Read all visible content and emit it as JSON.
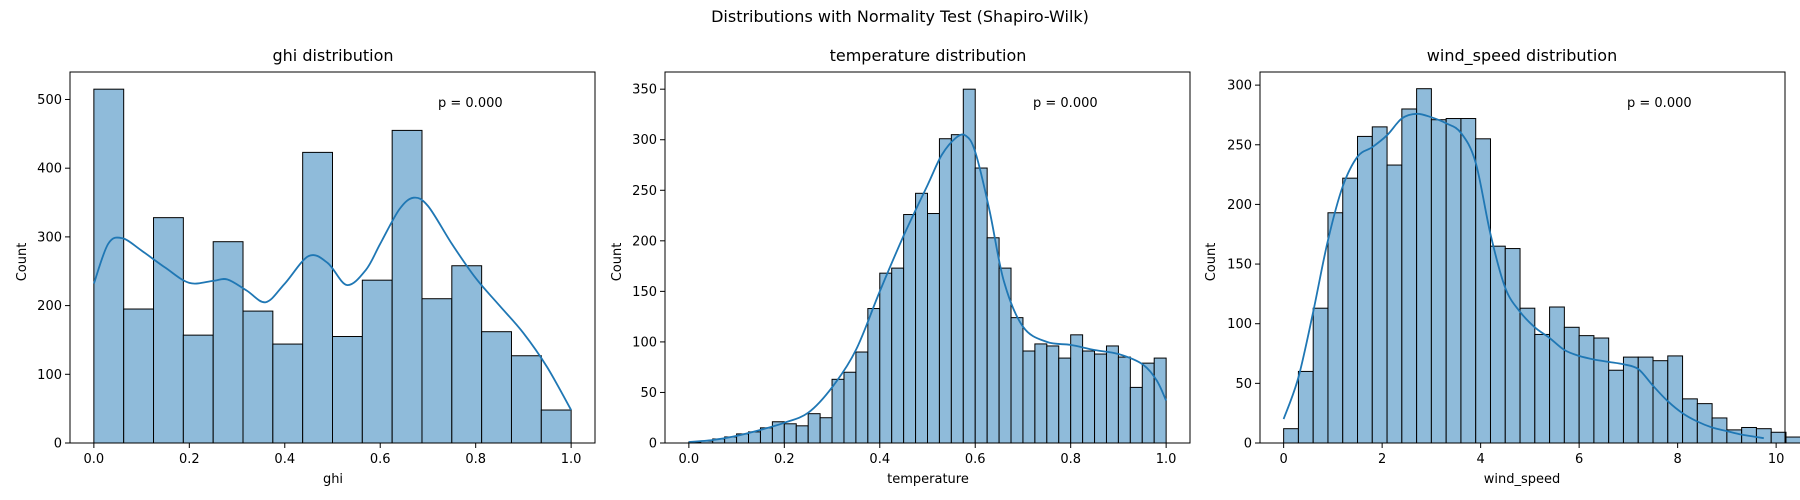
{
  "figure": {
    "suptitle": "Distributions with Normality Test (Shapiro-Wilk)"
  },
  "colors": {
    "bar_fill": "#8fbbda",
    "bar_edge": "#000000",
    "kde_line": "#1f77b4"
  },
  "chart_data": [
    {
      "type": "bar",
      "subtype": "histogram",
      "title": "ghi distribution",
      "xlabel": "ghi",
      "ylabel": "Count",
      "annotation": "p = 0.000",
      "xlim": [
        -0.05,
        1.05
      ],
      "ylim": [
        0,
        540
      ],
      "xticks": [
        0.0,
        0.2,
        0.4,
        0.6,
        0.8,
        1.0
      ],
      "xtick_labels": [
        "0.0",
        "0.2",
        "0.4",
        "0.6",
        "0.8",
        "1.0"
      ],
      "yticks": [
        0,
        100,
        200,
        300,
        400,
        500
      ],
      "ytick_labels": [
        "0",
        "100",
        "200",
        "300",
        "400",
        "500"
      ],
      "bin_start": 0.0,
      "bin_width": 0.0625,
      "values": [
        515,
        195,
        328,
        157,
        293,
        192,
        144,
        423,
        155,
        237,
        455,
        210,
        258,
        162,
        127,
        48
      ],
      "kde": {
        "x": [
          0.0,
          0.03,
          0.06,
          0.1,
          0.15,
          0.2,
          0.25,
          0.28,
          0.32,
          0.36,
          0.4,
          0.45,
          0.49,
          0.53,
          0.57,
          0.6,
          0.64,
          0.67,
          0.7,
          0.75,
          0.8,
          0.85,
          0.9,
          0.95,
          1.0
        ],
        "y": [
          232,
          290,
          298,
          280,
          255,
          233,
          236,
          238,
          222,
          205,
          232,
          272,
          262,
          230,
          252,
          290,
          340,
          357,
          345,
          290,
          240,
          200,
          160,
          110,
          48
        ]
      }
    },
    {
      "type": "bar",
      "subtype": "histogram",
      "title": "temperature distribution",
      "xlabel": "temperature",
      "ylabel": "Count",
      "annotation": "p = 0.000",
      "xlim": [
        -0.05,
        1.05
      ],
      "ylim": [
        0,
        367
      ],
      "xticks": [
        0.0,
        0.2,
        0.4,
        0.6,
        0.8,
        1.0
      ],
      "xtick_labels": [
        "0.0",
        "0.2",
        "0.4",
        "0.6",
        "0.8",
        "1.0"
      ],
      "yticks": [
        0,
        50,
        100,
        150,
        200,
        250,
        300,
        350
      ],
      "ytick_labels": [
        "0",
        "50",
        "100",
        "150",
        "200",
        "250",
        "300",
        "350"
      ],
      "bin_start": 0.0,
      "bin_width": 0.025,
      "values": [
        1,
        2,
        4,
        6,
        9,
        11,
        15,
        21,
        19,
        17,
        29,
        25,
        63,
        70,
        90,
        133,
        168,
        173,
        226,
        247,
        227,
        301,
        305,
        350,
        272,
        203,
        173,
        124,
        91,
        98,
        96,
        84,
        107,
        91,
        88,
        96,
        85,
        55,
        79,
        84
      ],
      "kde": {
        "x": [
          0.0,
          0.05,
          0.1,
          0.15,
          0.2,
          0.25,
          0.3,
          0.35,
          0.4,
          0.45,
          0.5,
          0.53,
          0.56,
          0.58,
          0.6,
          0.63,
          0.66,
          0.7,
          0.75,
          0.8,
          0.85,
          0.9,
          0.95,
          0.98,
          1.0
        ],
        "y": [
          1,
          3,
          7,
          13,
          20,
          30,
          55,
          92,
          150,
          205,
          255,
          285,
          302,
          304,
          288,
          230,
          160,
          115,
          100,
          97,
          92,
          88,
          78,
          62,
          42
        ]
      }
    },
    {
      "type": "bar",
      "subtype": "histogram",
      "title": "wind_speed distribution",
      "xlabel": "wind_speed",
      "ylabel": "Count",
      "annotation": "p = 0.000",
      "xlim": [
        -0.48,
        10.18
      ],
      "ylim": [
        0,
        311
      ],
      "xticks": [
        0,
        2,
        4,
        6,
        8,
        10
      ],
      "xtick_labels": [
        "0",
        "2",
        "4",
        "6",
        "8",
        "10"
      ],
      "yticks": [
        0,
        50,
        100,
        150,
        200,
        250,
        300
      ],
      "ytick_labels": [
        "0",
        "50",
        "100",
        "150",
        "200",
        "250",
        "300"
      ],
      "bin_start": 0.0,
      "bin_width": 0.3,
      "values": [
        12,
        60,
        113,
        193,
        222,
        257,
        265,
        233,
        280,
        297,
        271,
        272,
        272,
        255,
        165,
        163,
        113,
        91,
        114,
        97,
        90,
        88,
        61,
        72,
        72,
        69,
        73,
        37,
        33,
        21,
        11,
        13,
        12,
        9,
        5
      ],
      "kde": {
        "x": [
          0.0,
          0.3,
          0.6,
          0.9,
          1.2,
          1.5,
          1.8,
          2.1,
          2.4,
          2.7,
          3.0,
          3.3,
          3.6,
          3.9,
          4.2,
          4.5,
          4.8,
          5.1,
          5.4,
          5.7,
          6.0,
          6.3,
          6.6,
          6.9,
          7.2,
          7.5,
          7.8,
          8.1,
          8.4,
          8.7,
          9.0,
          9.3,
          9.6,
          9.75
        ],
        "y": [
          20,
          55,
          110,
          170,
          215,
          240,
          248,
          258,
          272,
          276,
          273,
          268,
          260,
          235,
          175,
          130,
          110,
          97,
          88,
          78,
          73,
          70,
          68,
          66,
          62,
          48,
          35,
          25,
          18,
          13,
          10,
          7,
          5,
          4
        ]
      }
    }
  ]
}
